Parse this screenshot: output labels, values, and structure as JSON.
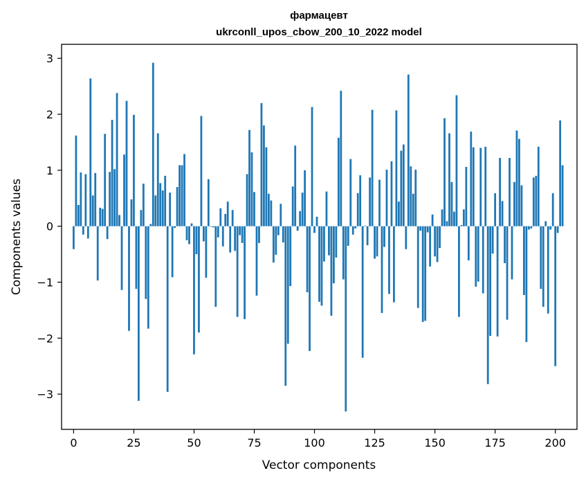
{
  "chart_data": {
    "type": "bar",
    "title": "фармацевт",
    "subtitle": "ukrconll_upos_cbow_200_10_2022 model",
    "xlabel": "Vector components",
    "ylabel": "Components values",
    "xlim": [
      -5,
      209
    ],
    "ylim": [
      -3.63,
      3.25
    ],
    "xticks": [
      0,
      25,
      50,
      75,
      100,
      125,
      150,
      175,
      200
    ],
    "yticks": [
      -3,
      -2,
      -1,
      0,
      1,
      2,
      3
    ],
    "ytick_labels": [
      "−3",
      "−2",
      "−1",
      "0",
      "1",
      "2",
      "3"
    ],
    "grid": false,
    "bar_color": "#1f77b4",
    "values": [
      -0.41,
      1.62,
      0.38,
      0.96,
      -0.15,
      0.93,
      -0.22,
      2.64,
      0.55,
      0.95,
      -0.97,
      0.33,
      0.31,
      1.65,
      -0.23,
      0.97,
      1.9,
      1.02,
      2.38,
      0.2,
      -1.14,
      1.28,
      2.24,
      -1.87,
      0.48,
      1.99,
      -1.12,
      -3.12,
      0.29,
      0.76,
      -1.3,
      -1.83,
      0.04,
      2.92,
      0.55,
      1.66,
      0.77,
      0.64,
      0.9,
      -2.96,
      0.6,
      -0.91,
      -0.03,
      0.7,
      1.09,
      1.09,
      1.29,
      -0.25,
      -0.32,
      0.05,
      -2.29,
      -0.5,
      -1.9,
      1.97,
      -0.27,
      -0.92,
      0.84,
      -0.01,
      -0.02,
      -1.44,
      -0.2,
      0.32,
      -0.36,
      0.22,
      0.44,
      -0.47,
      0.29,
      -0.44,
      -1.62,
      -0.16,
      -0.3,
      -1.66,
      0.93,
      1.72,
      1.32,
      0.61,
      -1.24,
      -0.3,
      2.2,
      1.8,
      1.41,
      0.58,
      0.46,
      -0.65,
      -0.51,
      -0.16,
      0.4,
      -0.29,
      -2.85,
      -2.1,
      -1.07,
      0.71,
      1.44,
      -0.08,
      0.27,
      0.6,
      1.0,
      -1.18,
      -2.23,
      2.13,
      -0.12,
      0.17,
      -1.35,
      -1.42,
      -0.63,
      0.62,
      -0.52,
      -1.6,
      -1.02,
      -0.56,
      1.58,
      2.42,
      -0.95,
      -3.31,
      -0.35,
      1.2,
      -0.15,
      -0.04,
      0.59,
      0.91,
      -2.35,
      0.01,
      -0.34,
      0.87,
      2.08,
      -0.58,
      -0.54,
      0.83,
      -1.55,
      -0.37,
      1.01,
      -1.21,
      1.16,
      -1.36,
      2.07,
      0.44,
      1.35,
      1.46,
      -0.41,
      2.71,
      1.07,
      0.58,
      1.01,
      -1.46,
      -0.08,
      -1.71,
      -1.69,
      -0.11,
      -0.72,
      0.21,
      -0.54,
      -0.64,
      -0.39,
      0.3,
      1.93,
      0.09,
      1.66,
      0.79,
      0.26,
      2.34,
      -1.62,
      0.02,
      0.3,
      1.06,
      -0.61,
      1.69,
      1.41,
      -1.08,
      -0.99,
      1.4,
      -1.2,
      1.42,
      -2.82,
      -1.96,
      -0.49,
      0.59,
      -1.97,
      1.22,
      0.45,
      -0.66,
      -1.67,
      1.22,
      -0.95,
      0.79,
      1.71,
      1.56,
      0.73,
      -1.23,
      -2.07,
      -0.06,
      -0.04,
      0.87,
      0.9,
      1.42,
      -1.12,
      -1.44,
      0.09,
      -1.56,
      -0.06,
      0.59,
      -2.5,
      -0.12,
      1.89,
      1.09
    ]
  }
}
